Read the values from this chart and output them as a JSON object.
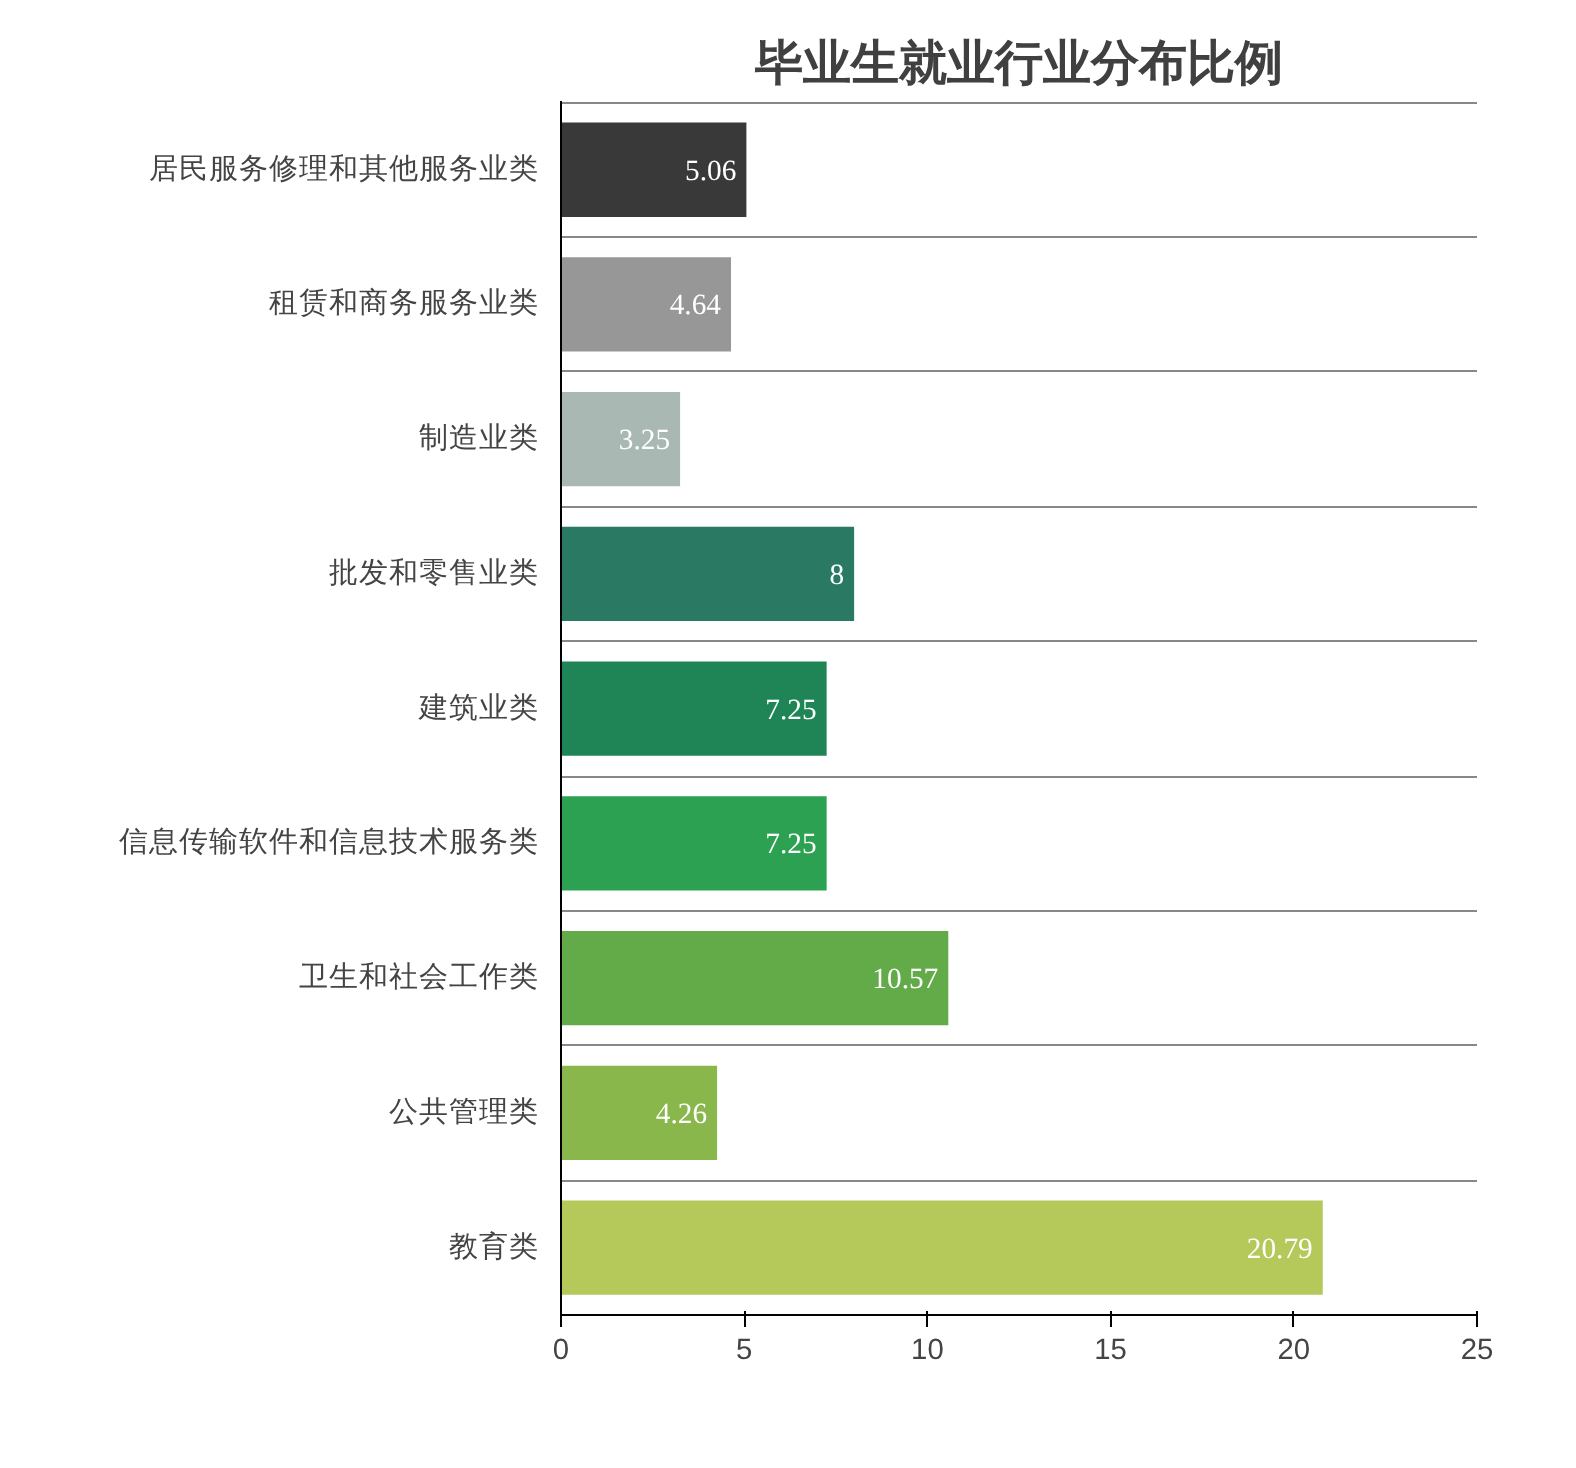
{
  "chart_data": {
    "type": "bar",
    "orientation": "horizontal",
    "title": "毕业生就业行业分布比例",
    "categories": [
      "居民服务修理和其他服务业类",
      "租赁和商务服务业类",
      "制造业类",
      "批发和零售业类",
      "建筑业类",
      "信息传输软件和信息技术服务类",
      "卫生和社会工作类",
      "公共管理类",
      "教育类"
    ],
    "values": [
      5.06,
      4.64,
      3.25,
      8,
      7.25,
      7.25,
      10.57,
      4.26,
      20.79
    ],
    "colors": [
      "#393939",
      "#979797",
      "#a9b8b2",
      "#2a7a63",
      "#1f8556",
      "#2ca152",
      "#63ab48",
      "#8ab74c",
      "#b5c85a"
    ],
    "xlim": [
      0,
      25
    ],
    "xticks": [
      0,
      5,
      10,
      15,
      20,
      25
    ],
    "grid": "y",
    "data_labels": true
  }
}
